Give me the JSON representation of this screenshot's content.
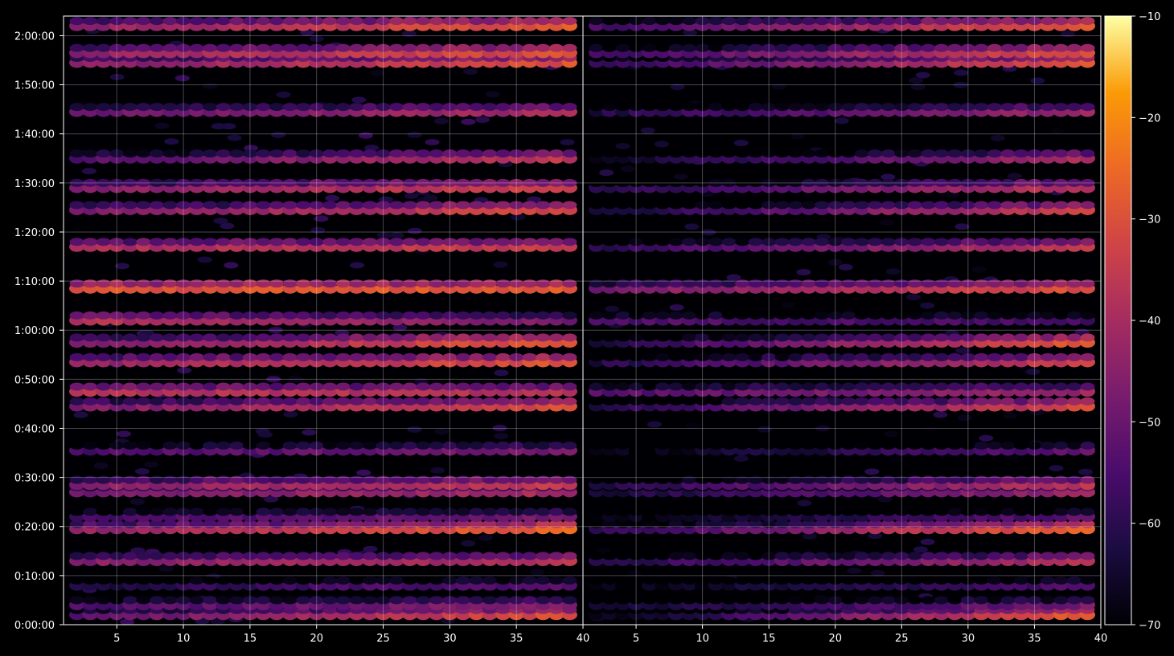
{
  "chart_data": {
    "type": "heatmap",
    "panels": [
      {
        "name": "",
        "x_range": [
          1,
          40
        ]
      },
      {
        "name": "",
        "x_range": [
          1,
          40
        ]
      }
    ],
    "xticks": [
      5,
      10,
      15,
      20,
      25,
      30,
      35,
      40
    ],
    "y_axis": {
      "unit": "time (h:mm:ss)",
      "range_seconds": [
        0,
        7440
      ],
      "ticks": [
        "0:00:00",
        "0:10:00",
        "0:20:00",
        "0:30:00",
        "0:40:00",
        "0:50:00",
        "1:00:00",
        "1:10:00",
        "1:20:00",
        "1:30:00",
        "1:40:00",
        "1:50:00",
        "2:00:00"
      ]
    },
    "colorbar": {
      "colormap": "inferno",
      "range": [
        -70,
        -10
      ],
      "ticks": [
        "−10",
        "−20",
        "−30",
        "−40",
        "−50",
        "−60",
        "−70"
      ]
    },
    "grid": true,
    "rows": [
      {
        "t": "0:02:00",
        "left": [
          -52,
          -30
        ],
        "right": [
          -68,
          -28
        ]
      },
      {
        "t": "0:04:00",
        "left": [
          -55,
          -45
        ],
        "right": [
          -66,
          -48
        ]
      },
      {
        "t": "0:08:00",
        "left": [
          -62,
          -52
        ],
        "right": [
          -70,
          -55
        ]
      },
      {
        "t": "0:13:00",
        "left": [
          -46,
          -38
        ],
        "right": [
          -62,
          -38
        ]
      },
      {
        "t": "0:19:30",
        "left": [
          -44,
          -26
        ],
        "right": [
          -60,
          -26
        ]
      },
      {
        "t": "0:22:00",
        "left": [
          -56,
          -48
        ],
        "right": [
          -70,
          -52
        ]
      },
      {
        "t": "0:27:00",
        "left": [
          -48,
          -40
        ],
        "right": [
          -64,
          -42
        ]
      },
      {
        "t": "0:28:30",
        "left": [
          -46,
          -34
        ],
        "right": [
          -62,
          -36
        ]
      },
      {
        "t": "0:35:30",
        "left": [
          -55,
          -48
        ],
        "right": [
          -70,
          -52
        ]
      },
      {
        "t": "0:44:30",
        "left": [
          -48,
          -30
        ],
        "right": [
          -62,
          -32
        ]
      },
      {
        "t": "0:47:30",
        "left": [
          -38,
          -38
        ],
        "right": [
          -54,
          -42
        ]
      },
      {
        "t": "0:53:30",
        "left": [
          -44,
          -30
        ],
        "right": [
          -62,
          -34
        ]
      },
      {
        "t": "0:57:30",
        "left": [
          -48,
          -28
        ],
        "right": [
          -62,
          -28
        ]
      },
      {
        "t": "1:02:00",
        "left": [
          -38,
          -48
        ],
        "right": [
          -54,
          -56
        ]
      },
      {
        "t": "1:08:30",
        "left": [
          -30,
          -28
        ],
        "right": [
          -48,
          -30
        ]
      },
      {
        "t": "1:17:00",
        "left": [
          -40,
          -34
        ],
        "right": [
          -60,
          -36
        ]
      },
      {
        "t": "1:24:30",
        "left": [
          -48,
          -32
        ],
        "right": [
          -64,
          -34
        ]
      },
      {
        "t": "1:29:00",
        "left": [
          -46,
          -34
        ],
        "right": [
          -62,
          -36
        ]
      },
      {
        "t": "1:35:00",
        "left": [
          -54,
          -36
        ],
        "right": [
          -66,
          -40
        ]
      },
      {
        "t": "1:44:30",
        "left": [
          -50,
          -40
        ],
        "right": [
          -62,
          -42
        ]
      },
      {
        "t": "1:54:30",
        "left": [
          -46,
          -30
        ],
        "right": [
          -60,
          -30
        ]
      },
      {
        "t": "1:56:30",
        "left": [
          -44,
          -30
        ],
        "right": [
          -58,
          -30
        ]
      },
      {
        "t": "2:02:00",
        "left": [
          -44,
          -28
        ],
        "right": [
          -56,
          -28
        ]
      }
    ]
  }
}
